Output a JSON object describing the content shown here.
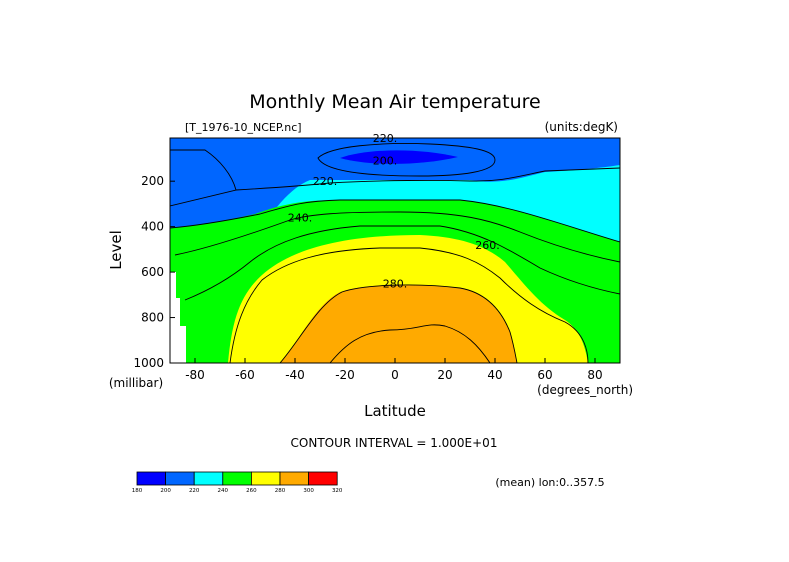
{
  "chart_data": {
    "type": "contour",
    "title": "Monthly Mean Air temperature",
    "subtitle_left": "[T_1976-10_NCEP.nc]",
    "subtitle_right": "(units:degK)",
    "xlabel": "Latitude",
    "xunits": "(degrees_north)",
    "ylabel": "Level",
    "yunits": "(millibar)",
    "xlim": [
      -90,
      90
    ],
    "ylim": [
      1000,
      10
    ],
    "xticks": [
      -80,
      -60,
      -40,
      -20,
      0,
      20,
      40,
      60,
      80
    ],
    "yticks": [
      200,
      400,
      600,
      800,
      1000
    ],
    "contour_interval_text": "CONTOUR INTERVAL = 1.000E+01",
    "averaging_text": "(mean) lon:0..357.5",
    "contour_labels": [
      {
        "text": "220.",
        "lat": -4,
        "p": 10
      },
      {
        "text": "200.",
        "lat": -4,
        "p": 110
      },
      {
        "text": "220.",
        "lat": -28,
        "p": 200
      },
      {
        "text": "240.",
        "lat": -38,
        "p": 360
      },
      {
        "text": "260.",
        "lat": 37,
        "p": 480
      },
      {
        "text": "280.",
        "lat": 0,
        "p": 650
      }
    ],
    "colorbar": {
      "levels": [
        "180",
        "200",
        "220",
        "240",
        "260",
        "280",
        "300",
        "320"
      ],
      "colors": [
        "#0000ff",
        "#0066ff",
        "#00ffff",
        "#00ff00",
        "#ffff00",
        "#ffaa00",
        "#ff0000"
      ]
    }
  }
}
